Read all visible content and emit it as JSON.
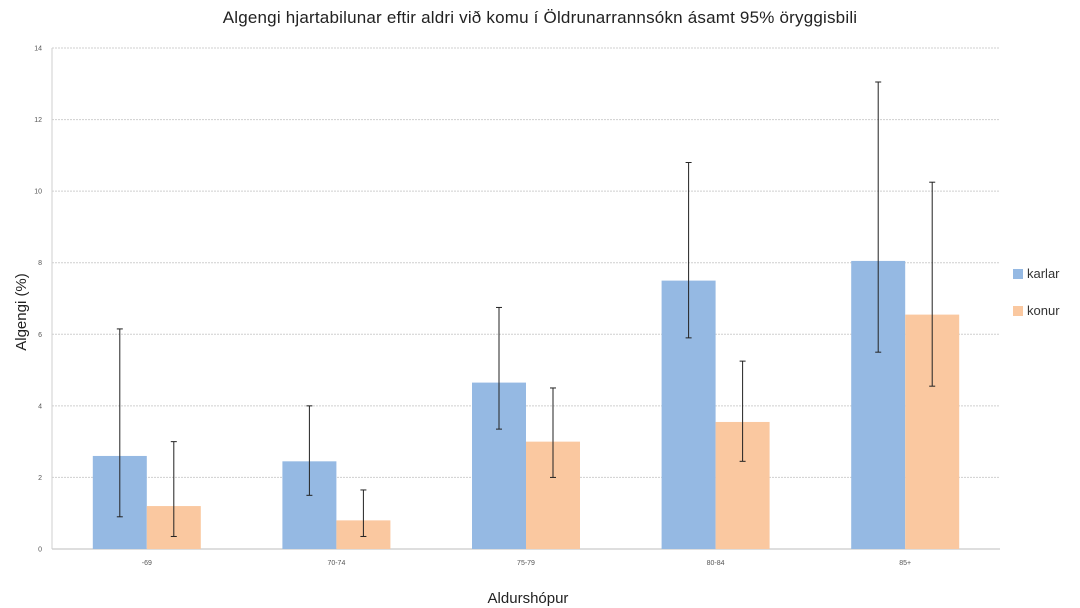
{
  "chart_data": {
    "type": "bar",
    "title": "Algengi hjartabilunar eftir aldri við komu í Öldrunarrannsókn ásamt 95% öryggisbili",
    "xlabel": "Aldurshópur",
    "ylabel": "Algengi (%)",
    "categories": [
      "-69",
      "70-74",
      "75-79",
      "80-84",
      "85+"
    ],
    "ylim": [
      0,
      14
    ],
    "yticks": [
      0,
      2,
      4,
      6,
      8,
      10,
      12,
      14
    ],
    "grid": true,
    "legend_position": "right",
    "series": [
      {
        "name": "karlar",
        "color": "#95b9e3",
        "values": [
          2.6,
          2.45,
          4.65,
          7.5,
          8.05
        ],
        "err_low": [
          0.9,
          1.5,
          3.35,
          5.9,
          5.5
        ],
        "err_high": [
          6.15,
          4.0,
          6.75,
          10.8,
          13.05
        ]
      },
      {
        "name": "konur",
        "color": "#fac8a0",
        "values": [
          1.2,
          0.8,
          3.0,
          3.55,
          6.55
        ],
        "err_low": [
          0.35,
          0.35,
          2.0,
          2.45,
          4.55
        ],
        "err_high": [
          3.0,
          1.65,
          4.5,
          5.25,
          10.25
        ]
      }
    ]
  }
}
